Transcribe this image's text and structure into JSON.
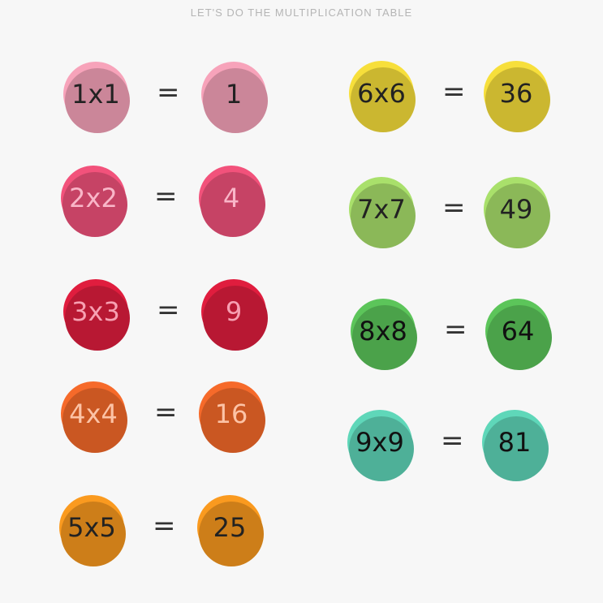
{
  "title": "LET'S DO THE MULTIPLICATION TABLE",
  "equals": "=",
  "items": [
    {
      "expr": "1x1",
      "result": "1",
      "color": "#f7a3ba",
      "text": "#222"
    },
    {
      "expr": "2x2",
      "result": "4",
      "color": "#f2527b",
      "text": "#f9b6c8"
    },
    {
      "expr": "3x3",
      "result": "9",
      "color": "#e01d3e",
      "text": "#f7a0b2"
    },
    {
      "expr": "4x4",
      "result": "16",
      "color": "#f66a2a",
      "text": "#fcc3a6"
    },
    {
      "expr": "5x5",
      "result": "25",
      "color": "#fa9a1f",
      "text": "#222"
    },
    {
      "expr": "6x6",
      "result": "36",
      "color": "#f7df3b",
      "text": "#222"
    },
    {
      "expr": "7x7",
      "result": "49",
      "color": "#a9e06b",
      "text": "#222"
    },
    {
      "expr": "8x8",
      "result": "64",
      "color": "#5cc55a",
      "text": "#111"
    },
    {
      "expr": "9x9",
      "result": "81",
      "color": "#5fd7b9",
      "text": "#111"
    }
  ]
}
